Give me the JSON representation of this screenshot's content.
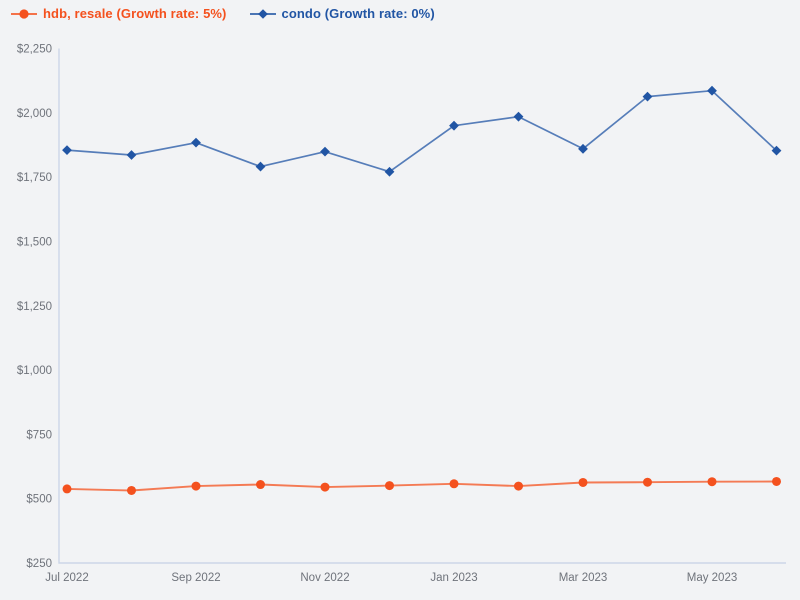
{
  "colors": {
    "background": "#f2f3f5",
    "axis": "#ccd6e8",
    "tick_text": "#6f737b",
    "hdb_orange": "#f4511e",
    "condo_blue": "#2155a4"
  },
  "chart_data": {
    "type": "line",
    "title": "",
    "xlabel": "",
    "ylabel": "",
    "grid": false,
    "legend_position": "top-left",
    "ylim": [
      250,
      2250
    ],
    "y_ticks": [
      250,
      500,
      750,
      1000,
      1250,
      1500,
      1750,
      2000,
      2250
    ],
    "y_tick_labels": [
      "$250",
      "$500",
      "$750",
      "$1,000",
      "$1,250",
      "$1,500",
      "$1,750",
      "$2,000",
      "$2,250"
    ],
    "x": [
      "Jul 2022",
      "Aug 2022",
      "Sep 2022",
      "Oct 2022",
      "Nov 2022",
      "Dec 2022",
      "Jan 2023",
      "Feb 2023",
      "Mar 2023",
      "Apr 2023",
      "May 2023",
      "Jun 2023"
    ],
    "x_tick_indices": [
      0,
      2,
      4,
      6,
      8,
      10
    ],
    "x_tick_labels": [
      "Jul 2022",
      "Sep 2022",
      "Nov 2022",
      "Jan 2023",
      "Mar 2023",
      "May 2023"
    ],
    "series": [
      {
        "id": "hdb-resale",
        "name": "hdb, resale (Growth rate: 5%)",
        "color": "#f4511e",
        "marker": "circle",
        "values": [
          538,
          532,
          549,
          555,
          545,
          551,
          558,
          549,
          563,
          564,
          566,
          567
        ]
      },
      {
        "id": "condo",
        "name": "condo (Growth rate: 0%)",
        "color": "#2155a4",
        "marker": "diamond",
        "values": [
          1855,
          1836,
          1884,
          1791,
          1849,
          1771,
          1950,
          1985,
          1860,
          2063,
          2086,
          1853
        ]
      }
    ]
  }
}
